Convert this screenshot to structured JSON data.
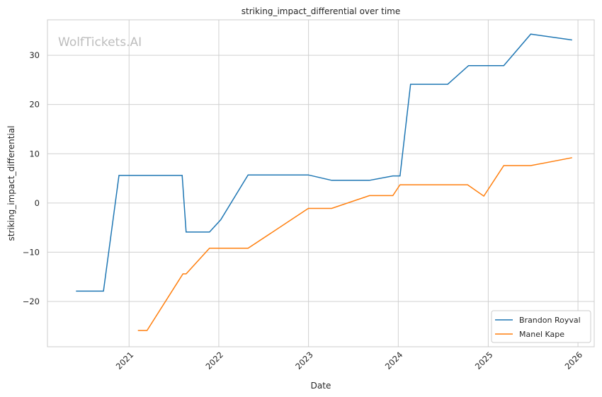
{
  "chart_data": {
    "type": "line",
    "title": "striking_impact_differential over time",
    "xlabel": "Date",
    "ylabel": "striking_impact_differential",
    "watermark": "WolfTickets.AI",
    "x_ticks": [
      "2021",
      "2022",
      "2023",
      "2024",
      "2025",
      "2026"
    ],
    "y_ticks": [
      -20,
      -10,
      0,
      10,
      20,
      30
    ],
    "xlim": [
      "2020-02-04",
      "2026-03-08"
    ],
    "ylim": [
      -29.2,
      37.2
    ],
    "grid": true,
    "legend_position": "lower-right",
    "series": [
      {
        "name": "Brandon Royval",
        "color": "#1f77b4",
        "points": [
          [
            "2020-05-30",
            -17.9
          ],
          [
            "2020-09-19",
            -17.9
          ],
          [
            "2020-11-21",
            5.6
          ],
          [
            "2021-08-05",
            5.6
          ],
          [
            "2021-08-21",
            -5.9
          ],
          [
            "2021-11-24",
            -5.9
          ],
          [
            "2022-01-09",
            -3.4
          ],
          [
            "2022-04-30",
            5.7
          ],
          [
            "2022-12-31",
            5.7
          ],
          [
            "2023-04-05",
            4.6
          ],
          [
            "2023-09-06",
            4.6
          ],
          [
            "2023-12-10",
            5.5
          ],
          [
            "2024-01-08",
            5.5
          ],
          [
            "2024-02-20",
            24.1
          ],
          [
            "2024-07-20",
            24.1
          ],
          [
            "2024-10-13",
            27.9
          ],
          [
            "2025-03-05",
            27.9
          ],
          [
            "2025-06-23",
            34.3
          ],
          [
            "2025-12-08",
            33.1
          ]
        ]
      },
      {
        "name": "Manel Kape",
        "color": "#ff7f0e",
        "points": [
          [
            "2021-02-06",
            -25.9
          ],
          [
            "2021-03-15",
            -25.9
          ],
          [
            "2021-08-08",
            -14.4
          ],
          [
            "2021-08-21",
            -14.4
          ],
          [
            "2021-11-24",
            -9.2
          ],
          [
            "2022-04-30",
            -9.2
          ],
          [
            "2022-12-31",
            -1.1
          ],
          [
            "2023-04-05",
            -1.1
          ],
          [
            "2023-09-06",
            1.5
          ],
          [
            "2023-12-10",
            1.5
          ],
          [
            "2024-01-08",
            3.7
          ],
          [
            "2024-10-09",
            3.7
          ],
          [
            "2024-12-14",
            1.4
          ],
          [
            "2025-03-05",
            7.6
          ],
          [
            "2025-06-23",
            7.6
          ],
          [
            "2025-12-08",
            9.2
          ]
        ]
      }
    ]
  }
}
